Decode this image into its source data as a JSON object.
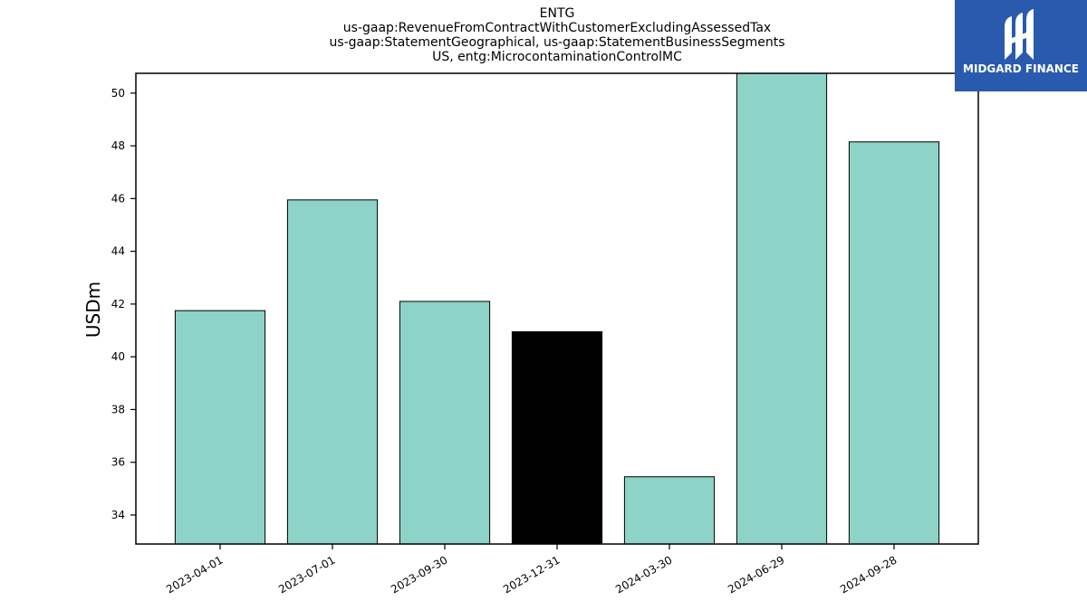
{
  "chart_data": {
    "type": "bar",
    "title_lines": [
      "ENTG",
      "us-gaap:RevenueFromContractWithCustomerExcludingAssessedTax",
      "us-gaap:StatementGeographical, us-gaap:StatementBusinessSegments",
      "US, entg:MicrocontaminationControlMC"
    ],
    "xlabel": "",
    "ylabel": "USDm",
    "categories": [
      "2023-04-01",
      "2023-07-01",
      "2023-09-30",
      "2023-12-31",
      "2024-03-30",
      "2024-06-29",
      "2024-09-28"
    ],
    "values": [
      41.75,
      45.95,
      42.1,
      40.95,
      35.45,
      50.75,
      48.15
    ],
    "highlight_index": 3,
    "yticks": [
      34,
      36,
      38,
      40,
      42,
      44,
      46,
      48,
      50
    ],
    "ylim": [
      32.9,
      50.75
    ],
    "grid": false,
    "legend": "none",
    "colors": {
      "bar": "#8dd3c7",
      "highlight": "#000000",
      "edge": "#000000"
    }
  },
  "logo": {
    "text": "MIDGARD FINANCE",
    "background": "#2a5aad"
  }
}
